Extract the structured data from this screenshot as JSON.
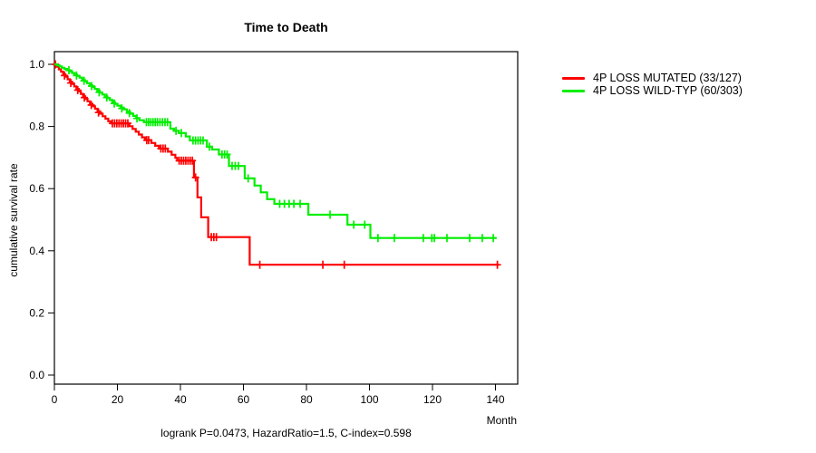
{
  "chart_data": {
    "type": "line",
    "chart_kind": "kaplan-meier-step",
    "title": "Time to Death",
    "xlabel": "Month",
    "ylabel": "cumulative survival rate",
    "footer": "logrank P=0.0473, HazardRatio=1.5, C-index=0.598",
    "xlim": [
      0,
      147
    ],
    "ylim": [
      0,
      1
    ],
    "x_ticks": [
      0,
      20,
      40,
      60,
      80,
      100,
      120,
      140
    ],
    "y_ticks": [
      0,
      0.2,
      0.4,
      0.6,
      0.8,
      1
    ],
    "grid": false,
    "legend_position": "right-outside",
    "series": [
      {
        "name": "4P LOSS MUTATED (33/127)",
        "color": "#ff0000",
        "events_total": "33/127",
        "steps": [
          [
            0,
            1.0
          ],
          [
            0.7,
            0.992
          ],
          [
            1.4,
            0.984
          ],
          [
            2.1,
            0.976
          ],
          [
            2.8,
            0.968
          ],
          [
            3.5,
            0.96
          ],
          [
            4.2,
            0.952
          ],
          [
            4.9,
            0.944
          ],
          [
            5.6,
            0.937
          ],
          [
            6.3,
            0.929
          ],
          [
            7.0,
            0.921
          ],
          [
            7.7,
            0.913
          ],
          [
            8.4,
            0.905
          ],
          [
            9.1,
            0.897
          ],
          [
            9.8,
            0.889
          ],
          [
            10.5,
            0.881
          ],
          [
            11.3,
            0.873
          ],
          [
            12.1,
            0.865
          ],
          [
            12.9,
            0.857
          ],
          [
            13.7,
            0.849
          ],
          [
            14.5,
            0.841
          ],
          [
            15.3,
            0.833
          ],
          [
            16.2,
            0.825
          ],
          [
            17.1,
            0.817
          ],
          [
            18.0,
            0.81
          ],
          [
            23.8,
            0.801
          ],
          [
            24.8,
            0.792
          ],
          [
            25.8,
            0.783
          ],
          [
            26.8,
            0.774
          ],
          [
            27.8,
            0.765
          ],
          [
            28.8,
            0.756
          ],
          [
            30.8,
            0.747
          ],
          [
            32.0,
            0.738
          ],
          [
            33.2,
            0.729
          ],
          [
            36.0,
            0.719
          ],
          [
            37.2,
            0.709
          ],
          [
            38.4,
            0.699
          ],
          [
            39.0,
            0.69
          ],
          [
            44.3,
            0.636
          ],
          [
            45.4,
            0.572
          ],
          [
            46.6,
            0.508
          ],
          [
            48.8,
            0.444
          ],
          [
            62.0,
            0.355
          ],
          [
            141.0,
            0.355
          ]
        ],
        "censors": [
          [
            0.3,
            1.0
          ],
          [
            3.2,
            0.964
          ],
          [
            5.2,
            0.94
          ],
          [
            7.4,
            0.917
          ],
          [
            9.5,
            0.893
          ],
          [
            11.7,
            0.869
          ],
          [
            14.0,
            0.845
          ],
          [
            18.4,
            0.81
          ],
          [
            19.1,
            0.81
          ],
          [
            19.8,
            0.81
          ],
          [
            20.5,
            0.81
          ],
          [
            21.2,
            0.81
          ],
          [
            21.9,
            0.81
          ],
          [
            22.6,
            0.81
          ],
          [
            23.3,
            0.81
          ],
          [
            29.3,
            0.756
          ],
          [
            29.9,
            0.756
          ],
          [
            33.8,
            0.729
          ],
          [
            34.5,
            0.729
          ],
          [
            35.2,
            0.729
          ],
          [
            39.6,
            0.69
          ],
          [
            40.3,
            0.69
          ],
          [
            41.0,
            0.69
          ],
          [
            41.7,
            0.69
          ],
          [
            42.4,
            0.69
          ],
          [
            43.1,
            0.69
          ],
          [
            43.8,
            0.69
          ],
          [
            44.8,
            0.636
          ],
          [
            49.8,
            0.444
          ],
          [
            50.6,
            0.444
          ],
          [
            51.4,
            0.444
          ],
          [
            65.2,
            0.355
          ],
          [
            85.2,
            0.355
          ],
          [
            92.0,
            0.355
          ],
          [
            140.6,
            0.355
          ]
        ]
      },
      {
        "name": "4P LOSS WILD-TYP (60/303)",
        "color": "#00ee00",
        "events_total": "60/303",
        "steps": [
          [
            0,
            1.0
          ],
          [
            0.8,
            0.997
          ],
          [
            1.6,
            0.993
          ],
          [
            2.4,
            0.989
          ],
          [
            3.2,
            0.985
          ],
          [
            4.0,
            0.981
          ],
          [
            4.8,
            0.977
          ],
          [
            5.6,
            0.972
          ],
          [
            6.4,
            0.967
          ],
          [
            7.2,
            0.962
          ],
          [
            8.0,
            0.957
          ],
          [
            8.8,
            0.951
          ],
          [
            9.6,
            0.945
          ],
          [
            10.4,
            0.939
          ],
          [
            11.2,
            0.933
          ],
          [
            12.0,
            0.927
          ],
          [
            12.8,
            0.921
          ],
          [
            13.6,
            0.915
          ],
          [
            14.4,
            0.909
          ],
          [
            15.2,
            0.903
          ],
          [
            16.0,
            0.897
          ],
          [
            16.8,
            0.891
          ],
          [
            17.6,
            0.885
          ],
          [
            18.4,
            0.879
          ],
          [
            19.2,
            0.873
          ],
          [
            20.0,
            0.867
          ],
          [
            21.0,
            0.861
          ],
          [
            22.0,
            0.855
          ],
          [
            23.0,
            0.848
          ],
          [
            24.0,
            0.841
          ],
          [
            25.0,
            0.834
          ],
          [
            26.0,
            0.827
          ],
          [
            27.0,
            0.82
          ],
          [
            28.4,
            0.814
          ],
          [
            36.8,
            0.793
          ],
          [
            38.0,
            0.786
          ],
          [
            39.5,
            0.779
          ],
          [
            41.7,
            0.768
          ],
          [
            43.0,
            0.755
          ],
          [
            48.4,
            0.735
          ],
          [
            50.0,
            0.726
          ],
          [
            52.2,
            0.71
          ],
          [
            55.4,
            0.673
          ],
          [
            60.4,
            0.633
          ],
          [
            63.5,
            0.61
          ],
          [
            65.5,
            0.588
          ],
          [
            67.5,
            0.566
          ],
          [
            69.8,
            0.551
          ],
          [
            80.6,
            0.516
          ],
          [
            93.0,
            0.484
          ],
          [
            100.3,
            0.441
          ],
          [
            140.2,
            0.441
          ]
        ],
        "censors": [
          [
            4.6,
            0.981
          ],
          [
            7.0,
            0.964
          ],
          [
            9.4,
            0.947
          ],
          [
            11.8,
            0.93
          ],
          [
            14.2,
            0.91
          ],
          [
            16.6,
            0.893
          ],
          [
            19.0,
            0.874
          ],
          [
            21.4,
            0.858
          ],
          [
            23.8,
            0.843
          ],
          [
            26.2,
            0.826
          ],
          [
            29.2,
            0.814
          ],
          [
            29.9,
            0.814
          ],
          [
            30.6,
            0.814
          ],
          [
            31.3,
            0.814
          ],
          [
            32.0,
            0.814
          ],
          [
            32.7,
            0.814
          ],
          [
            33.5,
            0.814
          ],
          [
            34.3,
            0.814
          ],
          [
            35.1,
            0.814
          ],
          [
            35.9,
            0.814
          ],
          [
            38.6,
            0.786
          ],
          [
            40.3,
            0.779
          ],
          [
            44.0,
            0.755
          ],
          [
            44.8,
            0.755
          ],
          [
            45.6,
            0.755
          ],
          [
            46.4,
            0.755
          ],
          [
            47.2,
            0.755
          ],
          [
            49.2,
            0.735
          ],
          [
            53.2,
            0.71
          ],
          [
            54.0,
            0.71
          ],
          [
            54.8,
            0.71
          ],
          [
            56.4,
            0.673
          ],
          [
            57.4,
            0.673
          ],
          [
            58.4,
            0.673
          ],
          [
            61.5,
            0.633
          ],
          [
            71.5,
            0.551
          ],
          [
            73.0,
            0.551
          ],
          [
            74.5,
            0.551
          ],
          [
            76.0,
            0.551
          ],
          [
            78.0,
            0.551
          ],
          [
            87.5,
            0.516
          ],
          [
            95.0,
            0.484
          ],
          [
            98.5,
            0.484
          ],
          [
            102.7,
            0.441
          ],
          [
            107.9,
            0.441
          ],
          [
            117.1,
            0.441
          ],
          [
            119.8,
            0.441
          ],
          [
            120.6,
            0.441
          ],
          [
            124.6,
            0.441
          ],
          [
            131.8,
            0.441
          ],
          [
            135.8,
            0.441
          ],
          [
            139.3,
            0.441
          ]
        ]
      }
    ]
  }
}
